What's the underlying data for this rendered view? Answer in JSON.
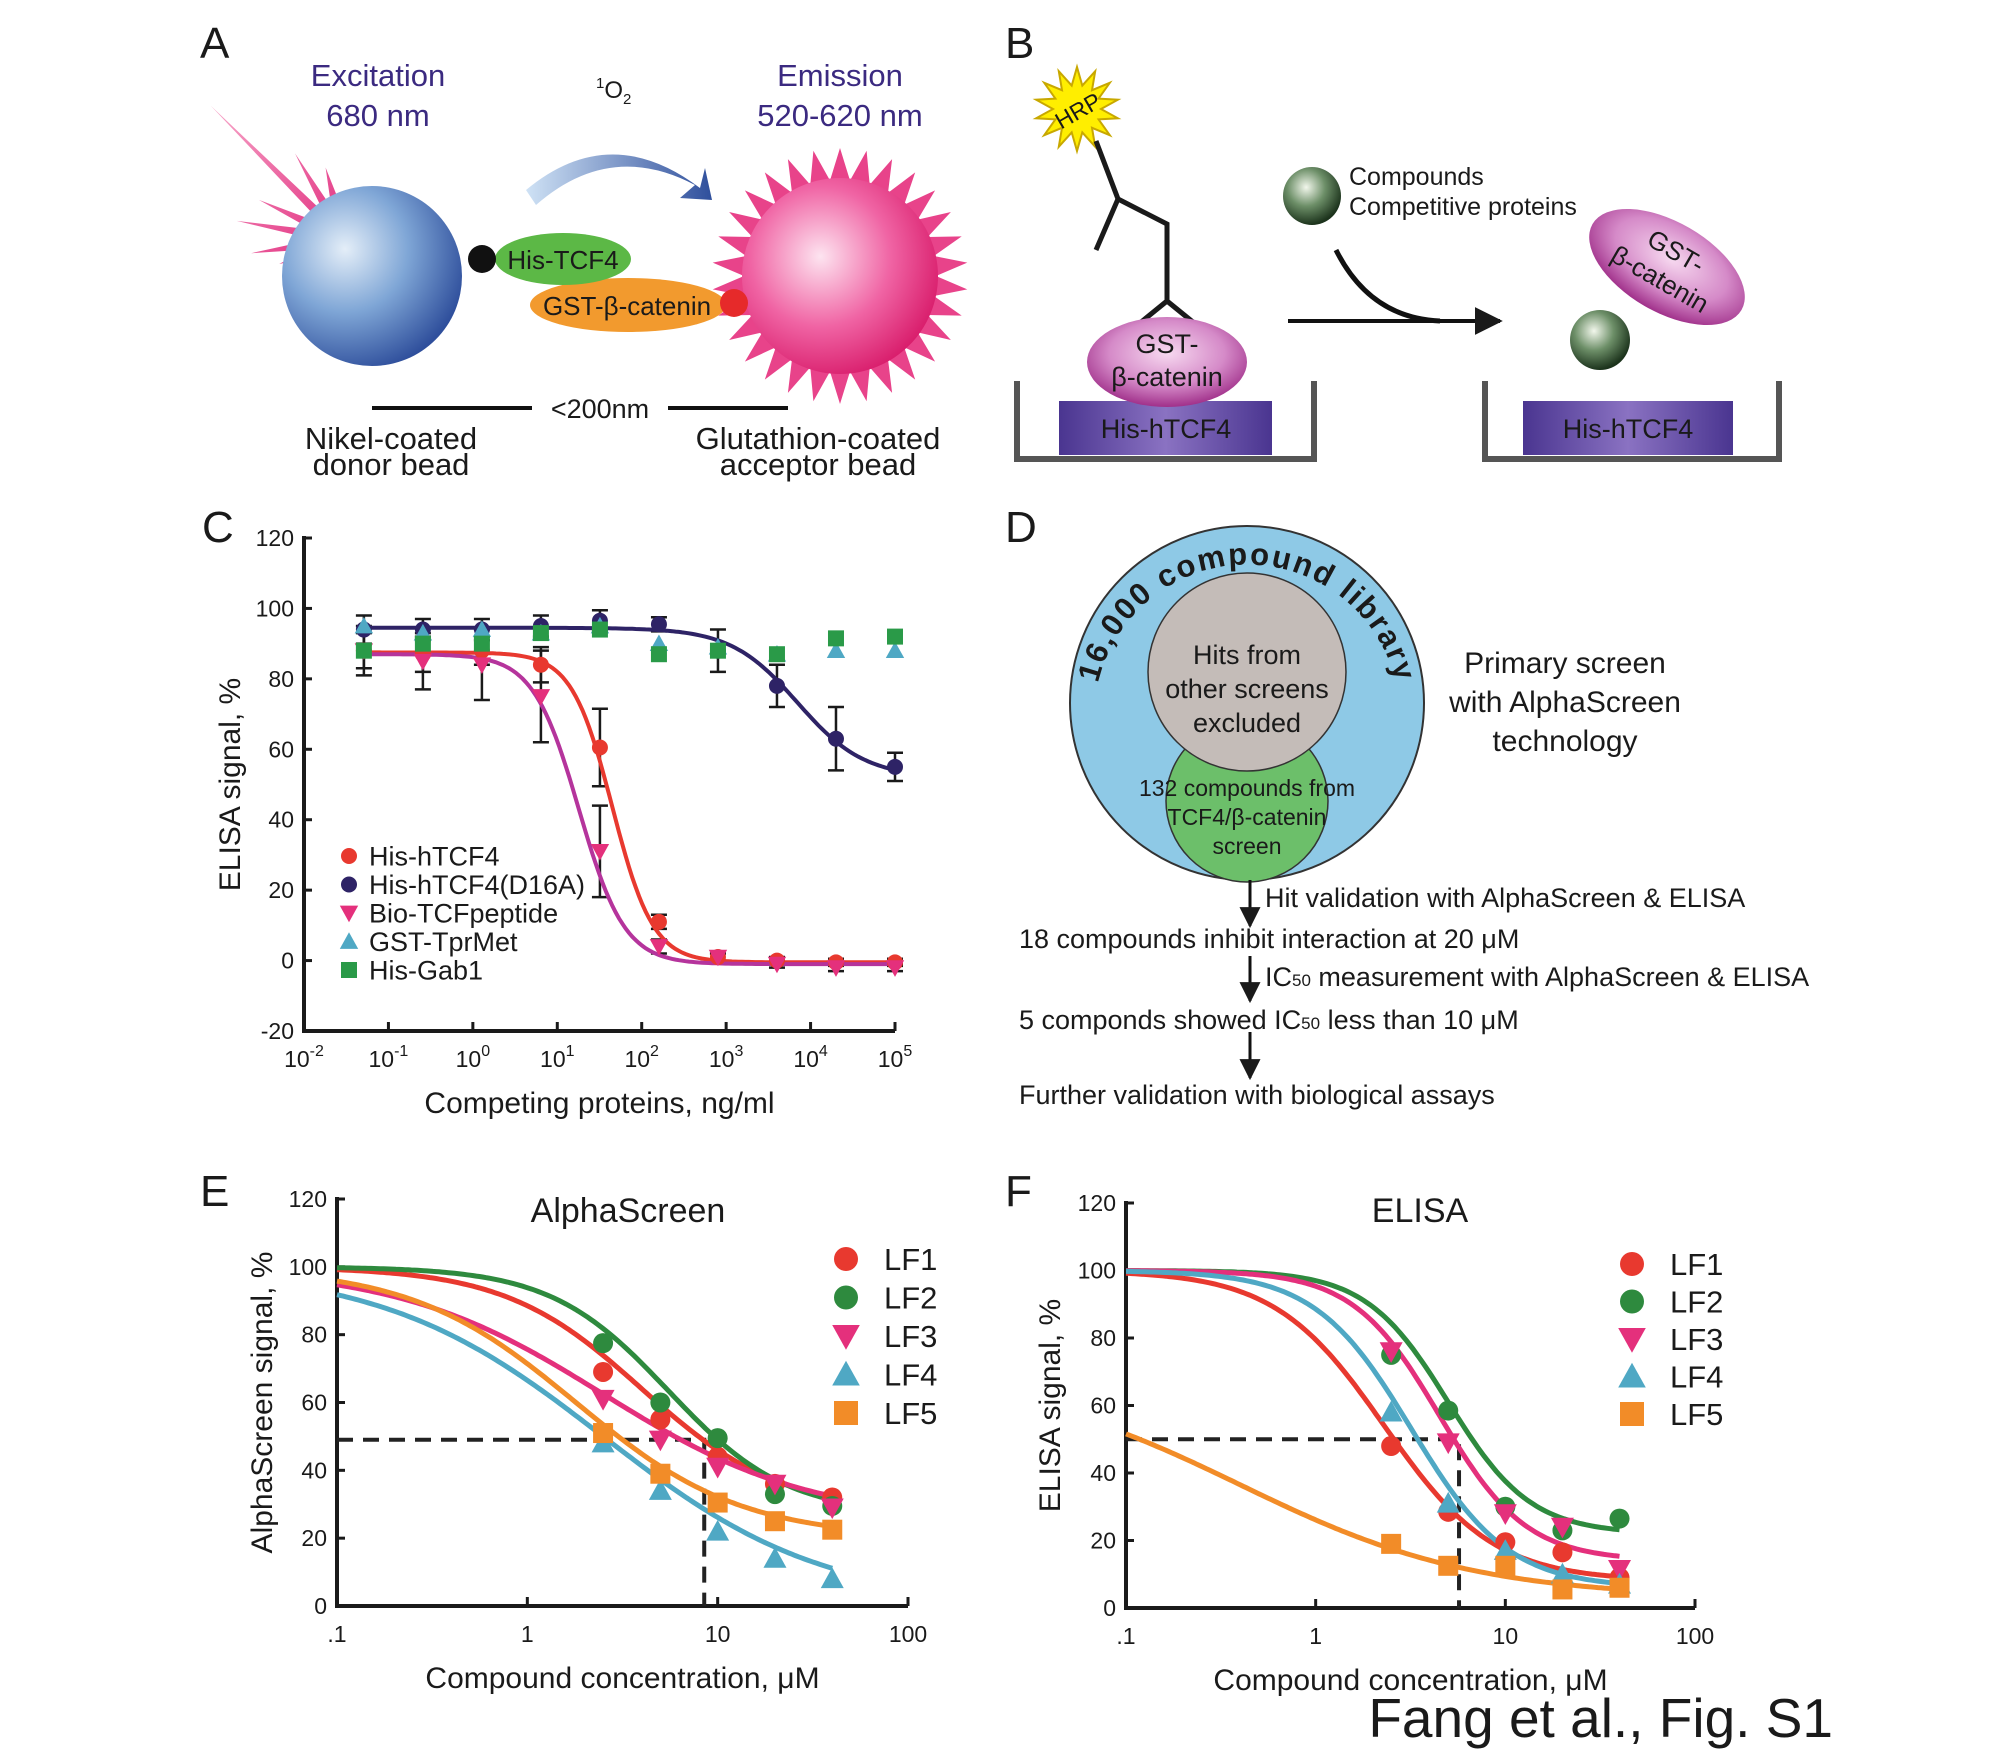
{
  "panel_a": {
    "label": "A",
    "excitation": "Excitation",
    "excitation_nm": "680 nm",
    "singlet_oxygen": "1",
    "singlet_oxygen_o": "O",
    "singlet_oxygen_sub": "2",
    "emission": "Emission",
    "emission_nm": "520-620 nm",
    "his_tcf4": "His-TCF4",
    "gst_catenin": "GST-β-catenin",
    "distance": "<200nm",
    "donor_line1": "Nikel-coated",
    "donor_line2": "donor bead",
    "acceptor_line1": "Glutathion-coated",
    "acceptor_line2": "acceptor bead",
    "colors": {
      "donor": "#3a62ad",
      "acceptor": "#e6307f",
      "his": "#5cb846",
      "gst": "#f29a2e"
    }
  },
  "panel_b": {
    "label": "B",
    "hrp": "HRP",
    "gst_line1": "GST-",
    "gst_line2": "β-catenin",
    "his_htcf4": "His-hTCF4",
    "compounds": "Compounds",
    "competitive": "Competitive proteins",
    "free_gst_line1": "GST-",
    "free_gst_line2": "β-catenin",
    "his_htcf4_right": "His-hTCF4"
  },
  "panel_d": {
    "label": "D",
    "library": "16,000 compound library",
    "hits_line1": "Hits from",
    "hits_line2": "other screens",
    "hits_line3": "excluded",
    "screen_line1": "132 compounds from",
    "screen_line2": "TCF4/β-catenin",
    "screen_line3": "screen",
    "primary_line1": "Primary screen",
    "primary_line2": "with AlphaScreen",
    "primary_line3": "technology",
    "step1": "Hit validation with AlphaScreen & ELISA",
    "result1": "18 compounds inhibit interaction at 20 μM",
    "step2_pre": "IC",
    "step2_sub": "50",
    "step2_post": " measurement with AlphaScreen & ELISA",
    "result2_pre": "5 componds showed IC",
    "result2_sub": "50",
    "result2_post": " less than 10 μM",
    "final": "Further validation with biological assays"
  },
  "chart_data": [
    {
      "panel": "C",
      "type": "scatter",
      "title": "",
      "xlabel": "Competing proteins, ng/ml",
      "ylabel": "ELISA signal, %",
      "x_scale": "log",
      "xlim": [
        0.01,
        100000
      ],
      "ylim": [
        -20,
        120
      ],
      "x_ticks": [
        {
          "base": "10",
          "exp": "-2"
        },
        {
          "base": "10",
          "exp": "-1"
        },
        {
          "base": "10",
          "exp": "0"
        },
        {
          "base": "10",
          "exp": "1"
        },
        {
          "base": "10",
          "exp": "2"
        },
        {
          "base": "10",
          "exp": "3"
        },
        {
          "base": "10",
          "exp": "4"
        },
        {
          "base": "10",
          "exp": "5"
        }
      ],
      "y_ticks": [
        "-20",
        "0",
        "20",
        "40",
        "60",
        "80",
        "100",
        "120"
      ],
      "legend_position": "bottom-left",
      "grid": false,
      "x": [
        0.0512,
        0.256,
        1.28,
        6.4,
        32,
        160,
        800,
        4000,
        20000,
        100000
      ],
      "series": [
        {
          "name": "His-hTCF4",
          "marker": "circle",
          "color": "#e8392f",
          "curve_color": "#e8392f",
          "values": [
            88,
            87,
            88,
            84,
            60.5,
            11,
            1,
            0,
            -0.5,
            -0.5
          ],
          "error": [
            5,
            5,
            4,
            5,
            11,
            2,
            1,
            1,
            1,
            1
          ],
          "fit": {
            "top": 87.5,
            "bottom": -0.5,
            "ic50": 45,
            "hill": 1.8
          }
        },
        {
          "name": "His-hTCF4(D16A)",
          "marker": "circle",
          "color": "#2e2366",
          "curve_color": "#2e2366",
          "values": [
            94,
            94,
            94,
            95,
            96.5,
            95.5,
            88,
            78,
            63,
            55
          ],
          "error": [
            4,
            3,
            3,
            3,
            3,
            2,
            6,
            6,
            9,
            4
          ],
          "fit": {
            "top": 94.5,
            "bottom": 52,
            "ic50": 7000,
            "hill": 1.1
          }
        },
        {
          "name": "Bio-TCFpeptide",
          "marker": "triangle-down",
          "color": "#e4307c",
          "curve_color": "#b5349c",
          "values": [
            88,
            85,
            84,
            75,
            31,
            4,
            1,
            -1,
            -2,
            -2
          ],
          "error": [
            7,
            8,
            10,
            13,
            13,
            2,
            1,
            1,
            1,
            1
          ],
          "fit": {
            "top": 87,
            "bottom": -1,
            "ic50": 18,
            "hill": 1.6
          }
        },
        {
          "name": "GST-TprMet",
          "marker": "triangle-up",
          "color": "#4fa8c4",
          "values": [
            95,
            93,
            94,
            93,
            95,
            90,
            89,
            87,
            88,
            88
          ]
        },
        {
          "name": "His-Gab1",
          "marker": "square",
          "color": "#2a9a48",
          "values": [
            88,
            90,
            90,
            93,
            94,
            87,
            88,
            87,
            91.5,
            92
          ]
        }
      ]
    },
    {
      "panel": "E",
      "type": "scatter",
      "title": "AlphaScreen",
      "xlabel": "Compound concentration, μM",
      "ylabel": "AlphaScreen signal, %",
      "x_scale": "log",
      "xlim": [
        0.1,
        100
      ],
      "ylim": [
        0,
        120
      ],
      "x_ticks": [
        ".1",
        "1",
        "10",
        "100"
      ],
      "y_ticks": [
        "0",
        "20",
        "40",
        "60",
        "80",
        "100",
        "120"
      ],
      "legend_position": "top-right",
      "grid": false,
      "reference_line": {
        "y": 49,
        "x": 8.5
      },
      "x": [
        2.5,
        5,
        10,
        20,
        40
      ],
      "series": [
        {
          "name": "LF1",
          "marker": "circle",
          "color": "#e8392f",
          "values": [
            69,
            55,
            44,
            36,
            32
          ],
          "fit": {
            "top": 100,
            "bottom": 28,
            "ic50": 4,
            "hill": 1.2
          }
        },
        {
          "name": "LF2",
          "marker": "circle",
          "color": "#2e8a3e",
          "values": [
            77.5,
            60,
            49.5,
            33,
            29.5
          ],
          "fit": {
            "top": 100,
            "bottom": 27,
            "ic50": 5.5,
            "hill": 1.4
          }
        },
        {
          "name": "LF3",
          "marker": "triangle-down",
          "color": "#e4307c",
          "values": [
            61,
            49,
            41,
            36,
            29
          ],
          "fit": {
            "top": 100,
            "bottom": 25,
            "ic50": 2.5,
            "hill": 0.8
          }
        },
        {
          "name": "LF4",
          "marker": "triangle-up",
          "color": "#4fa8c4",
          "values": [
            48,
            34,
            22,
            14,
            8
          ],
          "fit": {
            "top": 100,
            "bottom": 0,
            "ic50": 2.5,
            "hill": 0.75
          }
        },
        {
          "name": "LF5",
          "marker": "square",
          "color": "#f28c28",
          "values": [
            51,
            39,
            30.5,
            25,
            22.5
          ],
          "fit": {
            "top": 100,
            "bottom": 20,
            "ic50": 1.8,
            "hill": 1
          }
        }
      ]
    },
    {
      "panel": "F",
      "type": "scatter",
      "title": "ELISA",
      "xlabel": "Compound concentration, μM",
      "ylabel": "ELISA signal, %",
      "x_scale": "log",
      "xlim": [
        0.1,
        100
      ],
      "ylim": [
        0,
        120
      ],
      "x_ticks": [
        ".1",
        "1",
        "10",
        "100"
      ],
      "y_ticks": [
        "0",
        "20",
        "40",
        "60",
        "80",
        "100",
        "120"
      ],
      "legend_position": "top-right",
      "grid": false,
      "reference_line": {
        "y": 50,
        "x": 5.7
      },
      "x": [
        2.5,
        5,
        10,
        20,
        40
      ],
      "series": [
        {
          "name": "LF1",
          "marker": "circle",
          "color": "#e8392f",
          "values": [
            48,
            28.5,
            19.5,
            16.5,
            9
          ],
          "fit": {
            "top": 100,
            "bottom": 8,
            "ic50": 2.3,
            "hill": 1.5
          }
        },
        {
          "name": "LF2",
          "marker": "circle",
          "color": "#2e8a3e",
          "values": [
            75,
            58.5,
            30,
            23,
            26.5
          ],
          "fit": {
            "top": 100,
            "bottom": 22,
            "ic50": 5,
            "hill": 2
          }
        },
        {
          "name": "LF3",
          "marker": "triangle-down",
          "color": "#e4307c",
          "values": [
            76,
            49,
            28,
            24,
            11.5
          ],
          "fit": {
            "top": 100,
            "bottom": 14,
            "ic50": 4.5,
            "hill": 1.9
          }
        },
        {
          "name": "LF4",
          "marker": "triangle-up",
          "color": "#4fa8c4",
          "values": [
            58,
            31,
            17,
            10,
            7
          ],
          "fit": {
            "top": 100,
            "bottom": 6,
            "ic50": 3.2,
            "hill": 1.7
          }
        },
        {
          "name": "LF5",
          "marker": "square",
          "color": "#f28c28",
          "values": [
            19,
            12.5,
            12.5,
            5.5,
            6
          ],
          "fit": {
            "top": 70,
            "bottom": 3,
            "ic50": 0.4,
            "hill": 0.7
          }
        }
      ]
    }
  ],
  "footer": "Fang et al., Fig. S1"
}
